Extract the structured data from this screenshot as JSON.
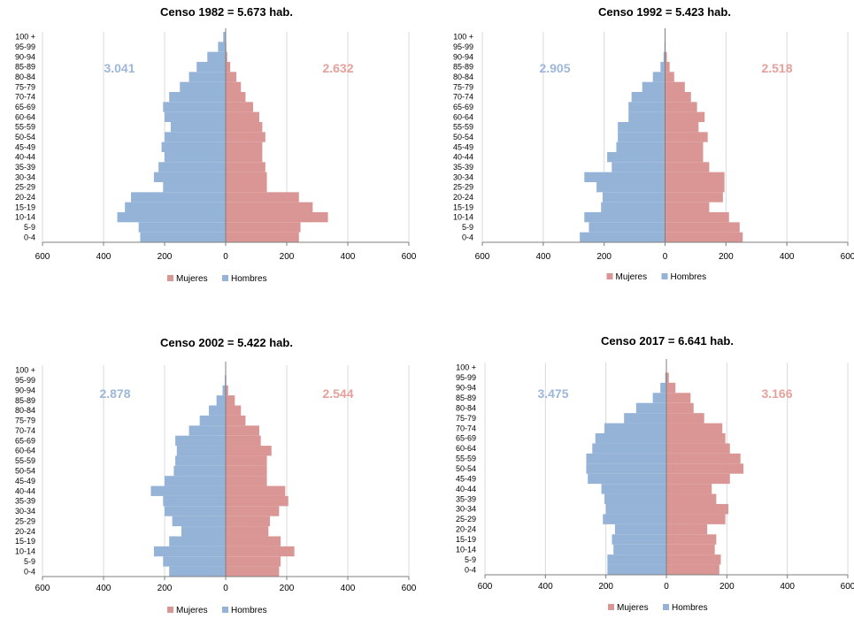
{
  "legend": {
    "mujeres": "Mujeres",
    "hombres": "Hombres"
  },
  "colors": {
    "mujeres": "#d99694",
    "hombres": "#95b3d7",
    "mujeres_text": "#e6a09c",
    "hombres_text": "#9db7da",
    "axis": "#7f7f7f",
    "grid": "#d9d9d9"
  },
  "chart_data": [
    {
      "type": "bar",
      "orientation": "horizontal",
      "title": "Censo 1982 = 5.673 hab.",
      "categories": [
        "0-4",
        "5-9",
        "10-14",
        "15-19",
        "20-24",
        "25-29",
        "30-34",
        "35-39",
        "40-44",
        "45-49",
        "50-54",
        "55-59",
        "60-64",
        "65-69",
        "70-74",
        "75-79",
        "80-84",
        "85-89",
        "90-94",
        "95-99",
        "100 +"
      ],
      "series": [
        {
          "name": "Mujeres",
          "values": [
            240,
            245,
            335,
            285,
            240,
            135,
            135,
            130,
            120,
            120,
            130,
            120,
            110,
            90,
            65,
            50,
            35,
            15,
            5,
            2,
            1
          ]
        },
        {
          "name": "Hombres",
          "values": [
            280,
            285,
            355,
            330,
            310,
            205,
            235,
            220,
            200,
            210,
            200,
            180,
            200,
            205,
            185,
            150,
            120,
            95,
            60,
            25,
            8
          ]
        }
      ],
      "annotations": {
        "hombres_total": "3.041",
        "mujeres_total": "2.632"
      },
      "xticks": [
        "600",
        "400",
        "200",
        "0",
        "200",
        "400",
        "600"
      ],
      "xlim": [
        -600,
        600
      ]
    },
    {
      "type": "bar",
      "orientation": "horizontal",
      "title": "Censo 1992 = 5.423 hab.",
      "categories": [
        "0-4",
        "5-9",
        "10-14",
        "15-19",
        "20-24",
        "25-29",
        "30-34",
        "35-39",
        "40-44",
        "45-49",
        "50-54",
        "55-59",
        "60-64",
        "65-69",
        "70-74",
        "75-79",
        "80-84",
        "85-89",
        "90-94",
        "95-99",
        "100 +"
      ],
      "series": [
        {
          "name": "Mujeres",
          "values": [
            255,
            245,
            210,
            145,
            190,
            195,
            195,
            145,
            125,
            125,
            140,
            110,
            130,
            105,
            85,
            65,
            30,
            15,
            6,
            2,
            1
          ]
        },
        {
          "name": "Hombres",
          "values": [
            280,
            250,
            265,
            210,
            205,
            225,
            265,
            175,
            190,
            160,
            155,
            155,
            120,
            120,
            110,
            75,
            40,
            15,
            5,
            2,
            1
          ]
        }
      ],
      "annotations": {
        "hombres_total": "2.905",
        "mujeres_total": "2.518"
      },
      "xticks": [
        "600",
        "400",
        "200",
        "0",
        "200",
        "400",
        "600"
      ],
      "xlim": [
        -600,
        600
      ]
    },
    {
      "type": "bar",
      "orientation": "horizontal",
      "title": "Censo 2002 = 5.422 hab.",
      "categories": [
        "0-4",
        "5-9",
        "10-14",
        "15-19",
        "20-24",
        "25-29",
        "30-34",
        "35-39",
        "40-44",
        "45-49",
        "50-54",
        "55-59",
        "60-64",
        "65-69",
        "70-74",
        "75-79",
        "80-84",
        "85-89",
        "90-94",
        "95-99",
        "100 +"
      ],
      "series": [
        {
          "name": "Mujeres",
          "values": [
            175,
            180,
            225,
            180,
            140,
            145,
            175,
            205,
            195,
            135,
            135,
            135,
            150,
            115,
            110,
            65,
            50,
            30,
            8,
            2,
            1
          ]
        },
        {
          "name": "Hombres",
          "values": [
            185,
            205,
            235,
            185,
            145,
            175,
            200,
            205,
            245,
            200,
            170,
            165,
            160,
            165,
            120,
            85,
            55,
            30,
            10,
            3,
            1
          ]
        }
      ],
      "annotations": {
        "hombres_total": "2.878",
        "mujeres_total": "2.544"
      },
      "xticks": [
        "600",
        "400",
        "200",
        "0",
        "200",
        "400",
        "600"
      ],
      "xlim": [
        -600,
        600
      ]
    },
    {
      "type": "bar",
      "orientation": "horizontal",
      "title": "Censo 2017 = 6.641 hab.",
      "categories": [
        "0-4",
        "5-9",
        "10-14",
        "15-19",
        "20-24",
        "25-29",
        "30-34",
        "35-39",
        "40-44",
        "45-49",
        "50-54",
        "55-59",
        "60-64",
        "65-69",
        "70-74",
        "75-79",
        "80-84",
        "85-89",
        "90-94",
        "95-99",
        "100 +"
      ],
      "series": [
        {
          "name": "Mujeres",
          "values": [
            175,
            180,
            160,
            165,
            135,
            195,
            205,
            165,
            150,
            210,
            255,
            245,
            210,
            195,
            185,
            125,
            90,
            80,
            30,
            8,
            1
          ]
        },
        {
          "name": "Hombres",
          "values": [
            195,
            195,
            175,
            180,
            170,
            210,
            200,
            205,
            215,
            260,
            265,
            265,
            245,
            235,
            205,
            140,
            100,
            45,
            20,
            4,
            1
          ]
        }
      ],
      "annotations": {
        "hombres_total": "3.475",
        "mujeres_total": "3.166"
      },
      "xticks": [
        "600",
        "400",
        "200",
        "0",
        "200",
        "400",
        "600"
      ],
      "xlim": [
        -600,
        600
      ]
    }
  ]
}
